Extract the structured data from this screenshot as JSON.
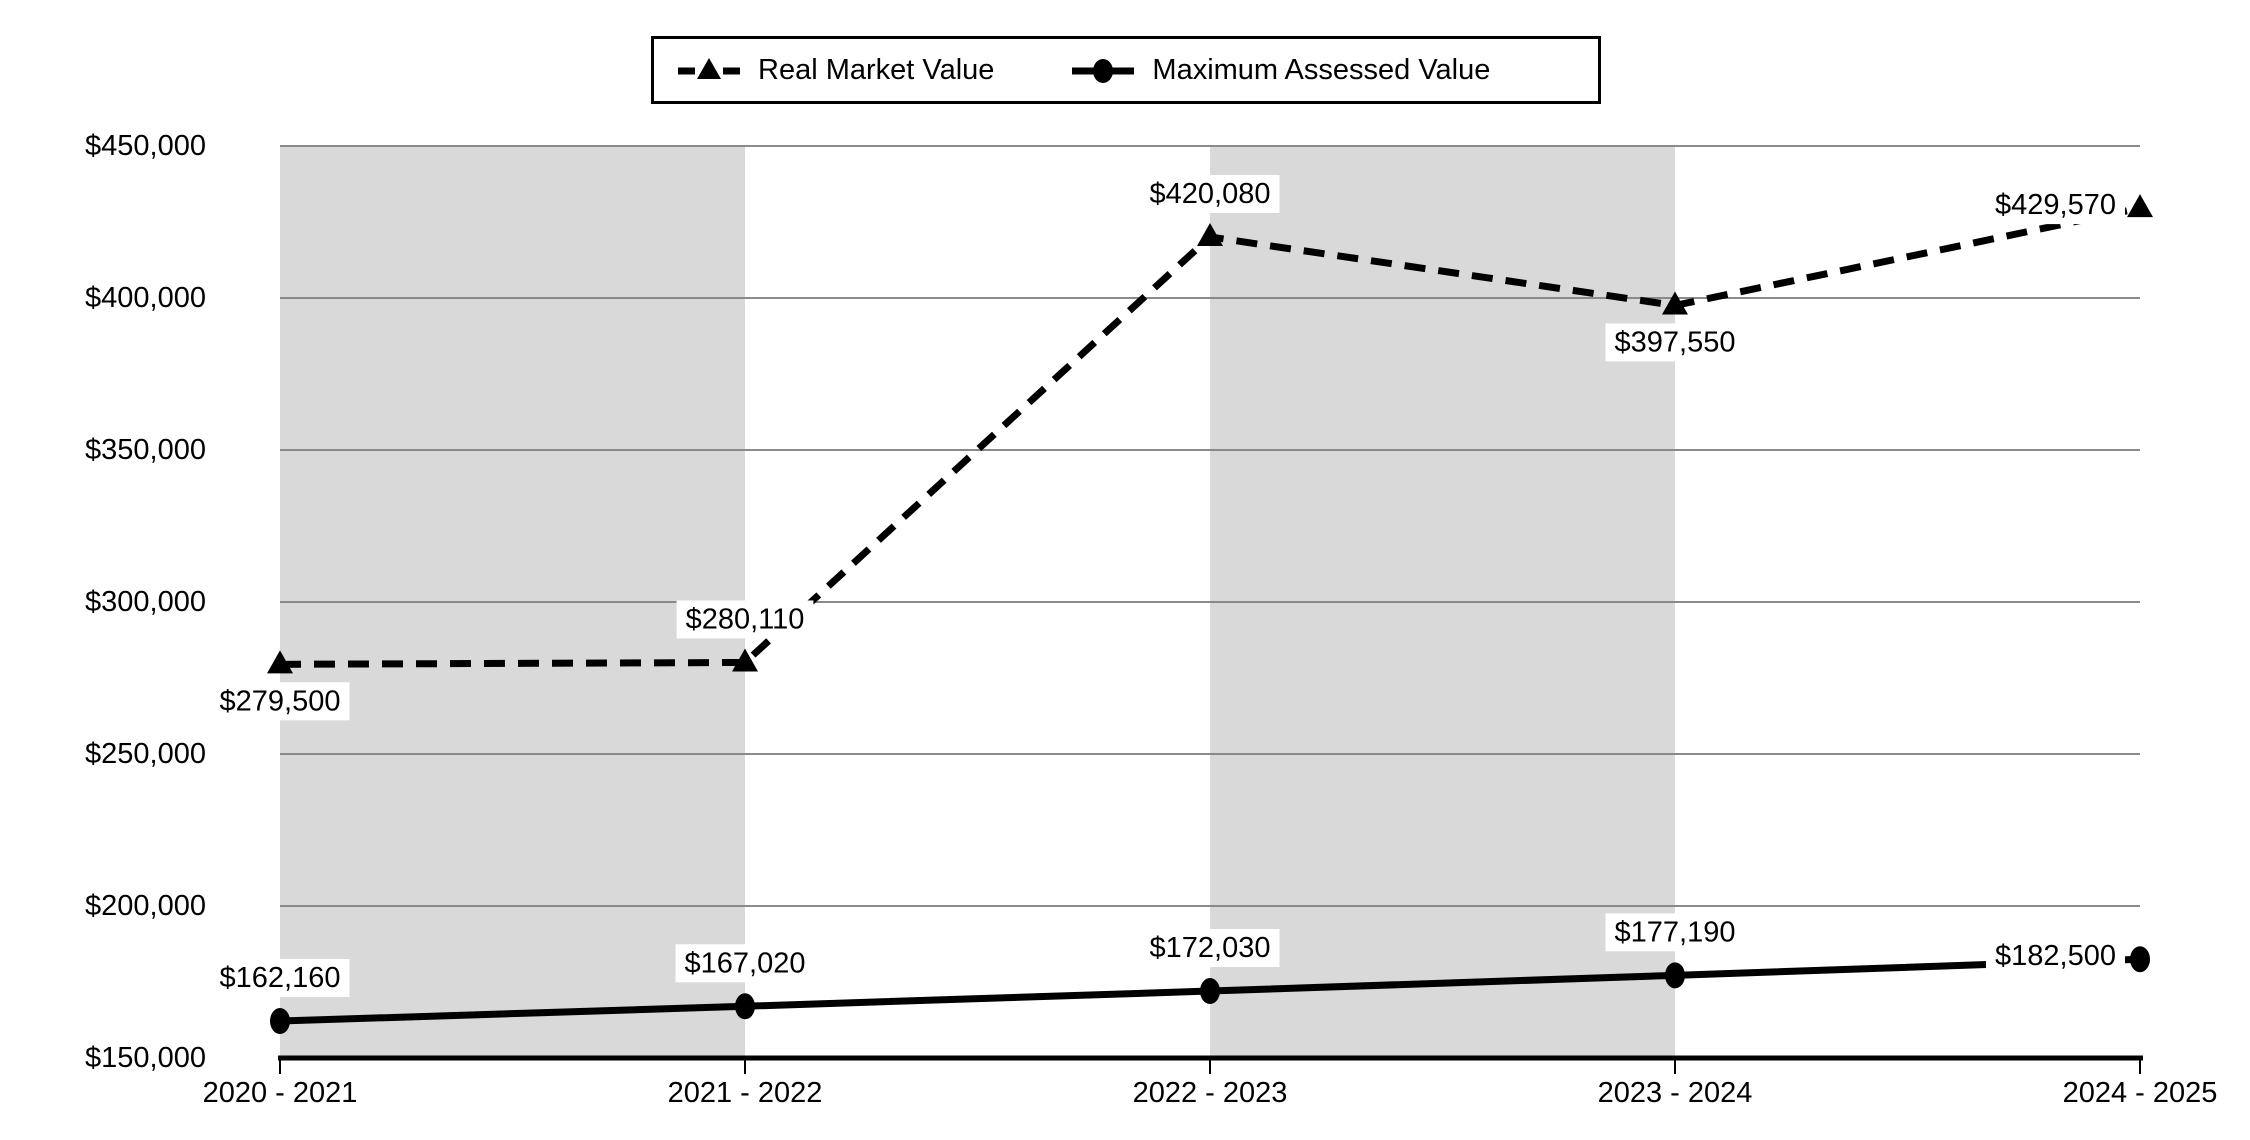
{
  "chart_data": {
    "type": "line",
    "title": "",
    "categories": [
      "2020 - 2021",
      "2021 - 2022",
      "2022 - 2023",
      "2023 - 2024",
      "2024 - 2025"
    ],
    "series": [
      {
        "name": "Real Market Value",
        "line_style": "dashed",
        "marker": "triangle",
        "color": "#000000",
        "values": [
          279500,
          280110,
          420080,
          397550,
          429570
        ],
        "point_labels": [
          "$279,500",
          "$280,110",
          "$420,080",
          "$397,550",
          "$429,570"
        ],
        "label_positions": [
          "below",
          "above",
          "above",
          "below",
          "left"
        ]
      },
      {
        "name": "Maximum Assessed Value",
        "line_style": "solid",
        "marker": "circle",
        "color": "#000000",
        "values": [
          162160,
          167020,
          172030,
          177190,
          182500
        ],
        "point_labels": [
          "$162,160",
          "$167,020",
          "$172,030",
          "$177,190",
          "$182,500"
        ],
        "label_positions": [
          "above",
          "above",
          "above",
          "above",
          "left"
        ]
      }
    ],
    "y_axis": {
      "min": 150000,
      "max": 450000,
      "step": 50000,
      "tick_labels": [
        "$150,000",
        "$200,000",
        "$250,000",
        "$300,000",
        "$350,000",
        "$400,000",
        "$450,000"
      ]
    },
    "x_axis": {
      "tick_labels": [
        "2020 - 2021",
        "2021 - 2022",
        "2022 - 2023",
        "2023 - 2024",
        "2024 - 2025"
      ]
    },
    "legend": {
      "position": "top",
      "border": true
    },
    "grid": {
      "horizontal": true,
      "vertical": false
    },
    "shaded_column_indexes": [
      0,
      2
    ],
    "colors": {
      "background": "#ffffff",
      "band": "#d9d9d9",
      "gridline": "#8a8a8a",
      "axis": "#000000",
      "text": "#000000",
      "label_background": "#ffffff"
    }
  }
}
